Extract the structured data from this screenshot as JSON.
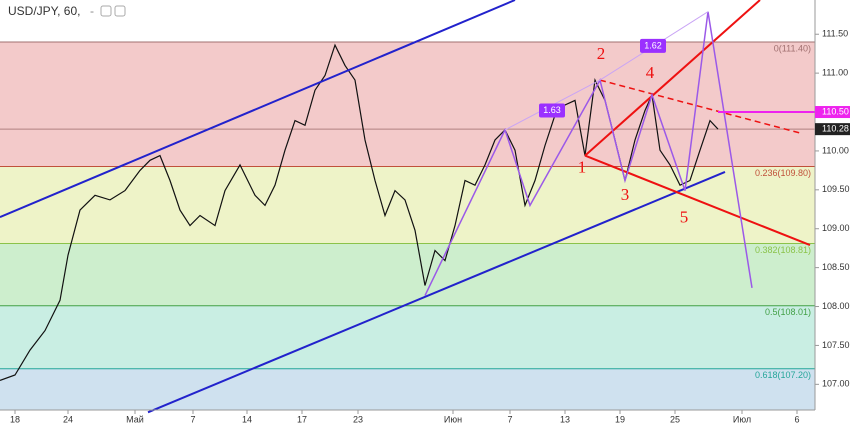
{
  "header": {
    "symbol": "USD/JPY, 60,",
    "dash": "-"
  },
  "chart_data": {
    "type": "line",
    "xlim": [
      0,
      81.5
    ],
    "ylim": [
      106.67,
      111.94
    ],
    "xticks": [
      {
        "value": 1.5,
        "label": "18"
      },
      {
        "value": 6.8,
        "label": "24"
      },
      {
        "value": 13.5,
        "label": "Май"
      },
      {
        "value": 19.3,
        "label": "7"
      },
      {
        "value": 24.7,
        "label": "14"
      },
      {
        "value": 30.2,
        "label": "17"
      },
      {
        "value": 35.8,
        "label": "23"
      },
      {
        "value": 45.3,
        "label": "Июн"
      },
      {
        "value": 51,
        "label": "7"
      },
      {
        "value": 56.5,
        "label": "13"
      },
      {
        "value": 62,
        "label": "19"
      },
      {
        "value": 67.5,
        "label": "25"
      },
      {
        "value": 74.2,
        "label": "Июл"
      },
      {
        "value": 79.7,
        "label": "6"
      }
    ],
    "yticks": [
      {
        "value": 107,
        "label": "107.00"
      },
      {
        "value": 107.5,
        "label": "107.50"
      },
      {
        "value": 108,
        "label": "108.00"
      },
      {
        "value": 108.5,
        "label": "108.50"
      },
      {
        "value": 109,
        "label": "109.00"
      },
      {
        "value": 109.5,
        "label": "109.50"
      },
      {
        "value": 110,
        "label": "110.00"
      },
      {
        "value": 110.5,
        "label": "110.50"
      },
      {
        "value": 111,
        "label": "111.00"
      },
      {
        "value": 111.5,
        "label": "111.50"
      }
    ],
    "series": [
      {
        "color": "#111111",
        "x": [
          0,
          1.5,
          3,
          4.5,
          6,
          6.8,
          8,
          9.5,
          11,
          12.5,
          14,
          15,
          16,
          17,
          18,
          19,
          20,
          21.5,
          22.5,
          24,
          25.5,
          26.5,
          27.5,
          28.5,
          29.5,
          30.5,
          31.5,
          32.5,
          33.5,
          34.5,
          35.5,
          36.5,
          37.5,
          38.5,
          39.5,
          40.5,
          41.5,
          42.5,
          43.5,
          44.5,
          45.5,
          46.5,
          47.5,
          48.5,
          49.5,
          50.5,
          51.5,
          52.5,
          53.5,
          54.5,
          55.5,
          56.5,
          57.5,
          58.5,
          59.5,
          60.5,
          61.5,
          62.5,
          63.5,
          64.5,
          65.2,
          66,
          67,
          68,
          69,
          70,
          71,
          71.8
        ],
        "values": [
          107.05,
          107.12,
          107.44,
          107.69,
          108.08,
          108.66,
          109.24,
          109.43,
          109.37,
          109.49,
          109.75,
          109.88,
          109.94,
          109.62,
          109.24,
          109.04,
          109.17,
          109.04,
          109.49,
          109.82,
          109.43,
          109.3,
          109.56,
          110.01,
          110.39,
          110.33,
          110.78,
          110.97,
          111.36,
          111.1,
          110.91,
          110.14,
          109.62,
          109.17,
          109.49,
          109.37,
          108.98,
          108.27,
          108.72,
          108.59,
          109.04,
          109.62,
          109.56,
          109.82,
          110.14,
          110.27,
          110.01,
          109.3,
          109.62,
          110.07,
          110.46,
          110.59,
          110.65,
          109.94,
          110.91,
          110.65,
          110.14,
          109.62,
          110.14,
          110.52,
          110.72,
          110.01,
          109.82,
          109.56,
          109.62,
          110.01,
          110.39,
          110.28
        ]
      }
    ],
    "fib_levels": [
      {
        "label": "0(111.40)",
        "value": 111.4,
        "color": "#a07070",
        "fill": "#f3caca"
      },
      {
        "label": "0.236(109.80)",
        "value": 109.8,
        "color": "#c0503a",
        "fill": "#eef3c8"
      },
      {
        "label": "0.382(108.81)",
        "value": 108.81,
        "color": "#8bc34a",
        "fill": "#cdeecd"
      },
      {
        "label": "0.5(108.01)",
        "value": 108.01,
        "color": "#43a047",
        "fill": "#c9eee3"
      },
      {
        "label": "0.618(107.20)",
        "value": 107.2,
        "color": "#26a69a",
        "fill": "#cfe1ef"
      }
    ],
    "trend_lines": [
      {
        "color": "#2222cc",
        "width": 2,
        "x": [
          0,
          51.5
        ],
        "y": [
          109.15,
          111.94
        ]
      },
      {
        "color": "#2222cc",
        "width": 2,
        "x": [
          14.8,
          72.5
        ],
        "y": [
          106.64,
          109.73
        ]
      },
      {
        "color": "#ee1111",
        "width": 2,
        "x": [
          58.5,
          76
        ],
        "y": [
          109.94,
          111.94
        ]
      },
      {
        "color": "#ee1111",
        "width": 2,
        "x": [
          58.5,
          81
        ],
        "y": [
          109.94,
          108.79
        ]
      },
      {
        "color": "#ee1111",
        "width": 1.5,
        "dash": true,
        "x": [
          60,
          80
        ],
        "y": [
          110.91,
          110.23
        ]
      },
      {
        "color": "#9b59e8",
        "width": 1.5,
        "x": [
          42.5,
          50.5,
          53,
          60,
          62.5,
          65.2,
          68.5,
          70.8,
          75.2
        ],
        "y": [
          108.14,
          110.27,
          109.3,
          110.91,
          109.62,
          110.72,
          109.49,
          111.79,
          108.24
        ]
      },
      {
        "color": "#c9a4f5",
        "width": 1,
        "x": [
          60,
          70.8
        ],
        "y": [
          110.91,
          111.79
        ]
      },
      {
        "color": "#c9a4f5",
        "width": 1,
        "x": [
          50.5,
          60
        ],
        "y": [
          110.27,
          110.91
        ]
      },
      {
        "color": "#ee22ee",
        "width": 2,
        "x": [
          71.8,
          81.5
        ],
        "y": [
          110.5,
          110.5
        ]
      }
    ],
    "wave_labels": [
      {
        "text": "1",
        "x": 58.2,
        "y": 109.77
      },
      {
        "text": "2",
        "x": 60.1,
        "y": 111.23
      },
      {
        "text": "3",
        "x": 62.5,
        "y": 109.42
      },
      {
        "text": "4",
        "x": 65,
        "y": 110.99
      },
      {
        "text": "5",
        "x": 68.4,
        "y": 109.13
      }
    ],
    "ratio_labels": [
      {
        "text": "1.63",
        "x": 55.2,
        "y": 110.52
      },
      {
        "text": "1.62",
        "x": 65.3,
        "y": 111.35
      }
    ],
    "price_tags": [
      {
        "label": "110.50",
        "value": 110.5,
        "color": "#ee22ee"
      },
      {
        "label": "110.28",
        "value": 110.28,
        "color": "#222222"
      }
    ]
  }
}
